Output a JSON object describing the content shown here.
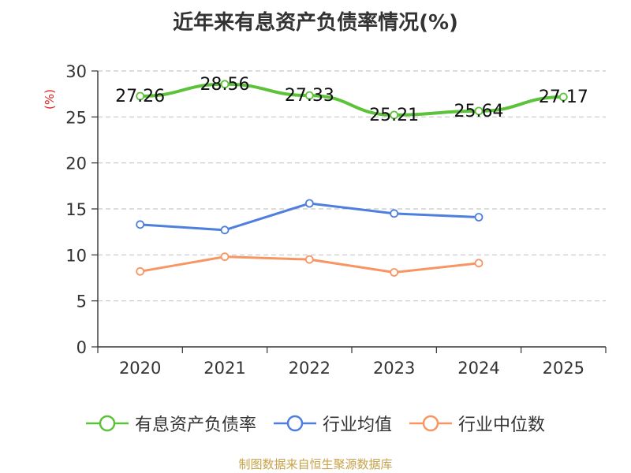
{
  "chart_data": {
    "type": "line",
    "title": "近年来有息资产负债率情况(%)",
    "ylabel": "(%)",
    "ylim": [
      0,
      30
    ],
    "yticks": [
      0,
      5,
      10,
      15,
      20,
      25,
      30
    ],
    "categories": [
      "2020",
      "2021",
      "2022",
      "2023",
      "2024",
      "2025"
    ],
    "grid": "horizontal-dashed",
    "legend_position": "bottom",
    "series": [
      {
        "name": "有息资产负债率",
        "color": "#5cc23a",
        "values": [
          27.26,
          28.56,
          27.33,
          25.21,
          25.64,
          27.17
        ],
        "labels": [
          "27.26",
          "28.56",
          "27.33",
          "25.21",
          "25.64",
          "27.17"
        ]
      },
      {
        "name": "行业均值",
        "color": "#4f7fde",
        "values": [
          13.3,
          12.7,
          15.6,
          14.5,
          14.1,
          null
        ]
      },
      {
        "name": "行业中位数",
        "color": "#f79563",
        "values": [
          8.2,
          9.8,
          9.5,
          8.1,
          9.1,
          null
        ]
      }
    ]
  },
  "source": "制图数据来自恒生聚源数据库"
}
